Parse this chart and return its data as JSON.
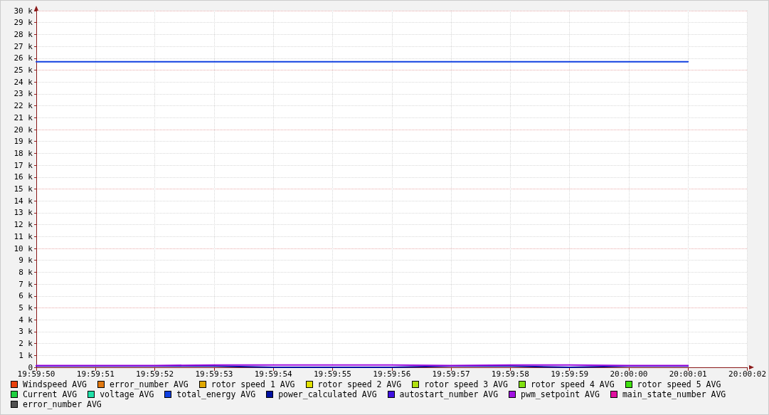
{
  "chart_data": {
    "type": "line",
    "categories": [
      "19:59:50",
      "19:59:51",
      "19:59:52",
      "19:59:53",
      "19:59:54",
      "19:59:55",
      "19:59:56",
      "19:59:57",
      "19:59:58",
      "19:59:59",
      "20:00:00",
      "20:00:01",
      "20:00:02"
    ],
    "ylim": [
      0,
      30000
    ],
    "yticks": [
      {
        "value": 0,
        "label": "0"
      },
      {
        "value": 1000,
        "label": "1 k"
      },
      {
        "value": 2000,
        "label": "2 k"
      },
      {
        "value": 3000,
        "label": "3 k"
      },
      {
        "value": 4000,
        "label": "4 k"
      },
      {
        "value": 5000,
        "label": "5 k"
      },
      {
        "value": 6000,
        "label": "6 k"
      },
      {
        "value": 7000,
        "label": "7 k"
      },
      {
        "value": 8000,
        "label": "8 k"
      },
      {
        "value": 9000,
        "label": "9 k"
      },
      {
        "value": 10000,
        "label": "10 k"
      },
      {
        "value": 11000,
        "label": "11 k"
      },
      {
        "value": 12000,
        "label": "12 k"
      },
      {
        "value": 13000,
        "label": "13 k"
      },
      {
        "value": 14000,
        "label": "14 k"
      },
      {
        "value": 15000,
        "label": "15 k"
      },
      {
        "value": 16000,
        "label": "16 k"
      },
      {
        "value": 17000,
        "label": "17 k"
      },
      {
        "value": 18000,
        "label": "18 k"
      },
      {
        "value": 19000,
        "label": "19 k"
      },
      {
        "value": 20000,
        "label": "20 k"
      },
      {
        "value": 21000,
        "label": "21 k"
      },
      {
        "value": 22000,
        "label": "22 k"
      },
      {
        "value": 23000,
        "label": "23 k"
      },
      {
        "value": 24000,
        "label": "24 k"
      },
      {
        "value": 25000,
        "label": "25 k"
      },
      {
        "value": 26000,
        "label": "26 k"
      },
      {
        "value": 27000,
        "label": "27 k"
      },
      {
        "value": 28000,
        "label": "28 k"
      },
      {
        "value": 29000,
        "label": "29 k"
      },
      {
        "value": 30000,
        "label": "30 k"
      }
    ],
    "grid": true,
    "legend": "bottom",
    "marker": "none",
    "line_style": "solid",
    "series": [
      {
        "name": "Windspeed AVG",
        "color": "#e8400c",
        "values": [
          null,
          null,
          null,
          null,
          null,
          null,
          null,
          null,
          null,
          null,
          null,
          null,
          null
        ]
      },
      {
        "name": "error_number AVG",
        "color": "#e07810",
        "values": [
          null,
          null,
          null,
          null,
          null,
          null,
          null,
          null,
          null,
          null,
          null,
          null,
          null
        ]
      },
      {
        "name": "rotor speed 1 AVG",
        "color": "#e0a800",
        "values": [
          null,
          null,
          null,
          null,
          null,
          null,
          null,
          null,
          null,
          null,
          null,
          null,
          null
        ]
      },
      {
        "name": "rotor speed 2 AVG",
        "color": "#e0e000",
        "values": [
          null,
          null,
          null,
          null,
          null,
          null,
          null,
          null,
          null,
          null,
          null,
          null,
          null
        ]
      },
      {
        "name": "rotor speed 3 AVG",
        "color": "#b0e010",
        "values": [
          null,
          null,
          null,
          null,
          null,
          null,
          null,
          null,
          null,
          null,
          null,
          null,
          null
        ]
      },
      {
        "name": "rotor speed 4 AVG",
        "color": "#80e010",
        "values": [
          null,
          null,
          null,
          null,
          null,
          null,
          null,
          null,
          null,
          null,
          null,
          null,
          null
        ]
      },
      {
        "name": "rotor speed 5 AVG",
        "color": "#40e010",
        "values": [
          null,
          null,
          null,
          null,
          null,
          null,
          null,
          null,
          null,
          null,
          null,
          null,
          null
        ]
      },
      {
        "name": "Current AVG",
        "color": "#20d040",
        "values": [
          null,
          null,
          null,
          null,
          null,
          null,
          null,
          null,
          null,
          null,
          null,
          null,
          null
        ]
      },
      {
        "name": "voltage AVG",
        "color": "#20e0a8",
        "values": [
          null,
          null,
          null,
          null,
          null,
          null,
          null,
          null,
          null,
          null,
          null,
          null,
          null
        ]
      },
      {
        "name": "total_energy AVG",
        "color": "#1040e0",
        "values": [
          25700,
          25700,
          25700,
          25700,
          25700,
          25700,
          25700,
          25700,
          25700,
          25700,
          25700,
          25700,
          null
        ]
      },
      {
        "name": "power_calculated AVG",
        "color": "#0010a0",
        "values": [
          100,
          100,
          100,
          100,
          0,
          0,
          0,
          100,
          100,
          0,
          100,
          100,
          null
        ]
      },
      {
        "name": "autostart_number AVG",
        "color": "#4010e0",
        "values": [
          null,
          null,
          null,
          null,
          null,
          null,
          null,
          null,
          null,
          null,
          null,
          null,
          null
        ]
      },
      {
        "name": "pwm_setpoint AVG",
        "color": "#a010e0",
        "values": [
          150,
          150,
          150,
          200,
          200,
          200,
          200,
          150,
          200,
          200,
          150,
          150,
          null
        ]
      },
      {
        "name": "main_state_number AVG",
        "color": "#e010a0",
        "values": [
          null,
          null,
          null,
          null,
          null,
          null,
          null,
          null,
          null,
          null,
          null,
          null,
          null
        ]
      },
      {
        "name": "error_number AVG",
        "color": "#505050",
        "values": [
          null,
          null,
          null,
          null,
          null,
          null,
          null,
          null,
          null,
          null,
          null,
          null,
          null
        ]
      }
    ]
  }
}
